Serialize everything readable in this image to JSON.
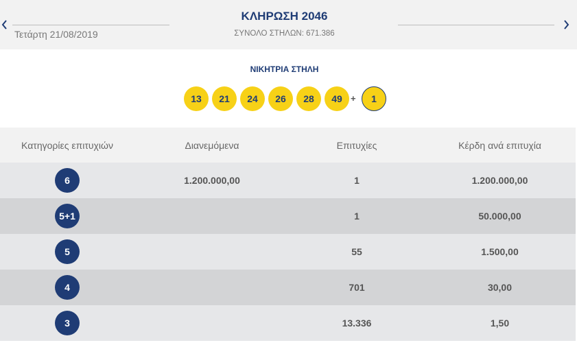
{
  "header": {
    "date": "Τετάρτη 21/08/2019",
    "title": "ΚΛΗΡΩΣΗ 2046",
    "total_columns": "ΣΥΝΟΛΟ ΣΤΗΛΩΝ: 671.386",
    "prev_icon": "chevron-left-icon",
    "next_icon": "chevron-right-icon"
  },
  "winning": {
    "title": "ΝΙΚΗΤΡΙΑ ΣΤΗΛΗ",
    "numbers": [
      "13",
      "21",
      "24",
      "26",
      "28",
      "49"
    ],
    "plus": "+",
    "joker": "1"
  },
  "table": {
    "headers": [
      "Κατηγορίες επιτυχιών",
      "Διανεμόμενα",
      "Επιτυχίες",
      "Κέρδη ανά επιτυχία"
    ],
    "rows": [
      {
        "category": "6",
        "distributed": "1.200.000,00",
        "winners": "1",
        "prize": "1.200.000,00"
      },
      {
        "category": "5+1",
        "distributed": "",
        "winners": "1",
        "prize": "50.000,00"
      },
      {
        "category": "5",
        "distributed": "",
        "winners": "55",
        "prize": "1.500,00"
      },
      {
        "category": "4",
        "distributed": "",
        "winners": "701",
        "prize": "30,00"
      },
      {
        "category": "3",
        "distributed": "",
        "winners": "13.336",
        "prize": "1,50"
      }
    ]
  },
  "colors": {
    "navy": "#1f3c75",
    "ball_yellow": "#f7d117",
    "row_light": "#e6e7e9",
    "row_dark": "#d3d4d6",
    "header_bg": "#f2f2f2"
  }
}
